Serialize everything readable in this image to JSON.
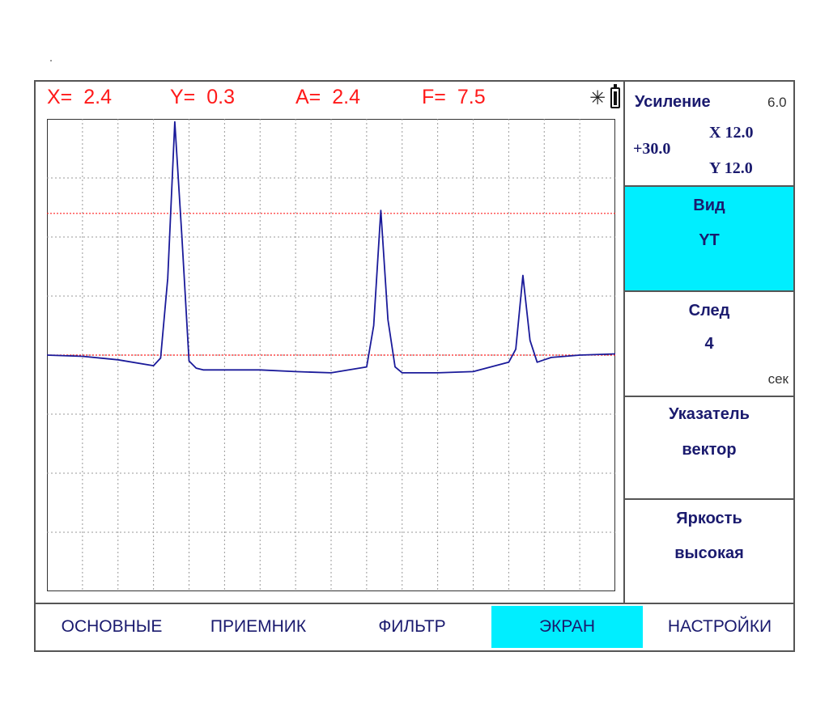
{
  "readout": {
    "x_label": "X=",
    "x_value": "2.4",
    "y_label": "Y=",
    "y_value": "0.3",
    "a_label": "A=",
    "a_value": "2.4",
    "f_label": "F=",
    "f_value": "7.5"
  },
  "status_icons": [
    "star-icon",
    "battery-icon"
  ],
  "colors": {
    "accent": "#00eeff",
    "readout": "#ff1a1a",
    "trace": "#1a1a9a",
    "threshold": "#ff2020",
    "label": "#1a1a6e"
  },
  "gain_panel": {
    "title": "Усиление",
    "step": "6.0",
    "total": "+30.0",
    "x_gain": "X 12.0",
    "y_gain": "Y 12.0"
  },
  "view_panel": {
    "title": "Вид",
    "value": "YT"
  },
  "trace_panel": {
    "title": "След",
    "value": "4",
    "unit": "сек"
  },
  "pointer_panel": {
    "title": "Указатель",
    "value": "вектор"
  },
  "brightness_panel": {
    "title": "Яркость",
    "value": "высокая"
  },
  "bottom_tabs": [
    "ОСНОВНЫЕ",
    "ПРИЕМНИК",
    "ФИЛЬТР",
    "ЭКРАН",
    "НАСТРОЙКИ"
  ],
  "active_tab": "ЭКРАН",
  "chart_data": {
    "type": "line",
    "grid": true,
    "grid_divisions": {
      "x": 16,
      "y": 8
    },
    "ylim": [
      -4,
      4
    ],
    "thresholds": [
      2.4,
      0
    ],
    "series": [
      {
        "x": [
          0,
          0.1,
          0.2,
          0.3,
          0.32,
          0.34,
          0.36,
          0.38,
          0.4,
          0.42,
          0.44,
          0.5,
          0.6,
          0.7,
          0.8,
          0.9,
          0.92,
          0.94,
          0.96,
          0.98,
          1.0,
          1.02,
          1.1,
          1.2,
          1.3,
          1.32,
          1.34,
          1.36,
          1.38,
          1.4,
          1.42,
          1.5,
          1.6
        ],
        "y": [
          0,
          -0.02,
          -0.08,
          -0.18,
          -0.05,
          1.3,
          3.95,
          2.0,
          -0.1,
          -0.22,
          -0.25,
          -0.25,
          -0.25,
          -0.28,
          -0.3,
          -0.2,
          0.5,
          2.45,
          0.6,
          -0.2,
          -0.3,
          -0.3,
          -0.3,
          -0.28,
          -0.12,
          0.1,
          1.35,
          0.25,
          -0.12,
          -0.08,
          -0.04,
          0.0,
          0.02
        ]
      }
    ]
  }
}
